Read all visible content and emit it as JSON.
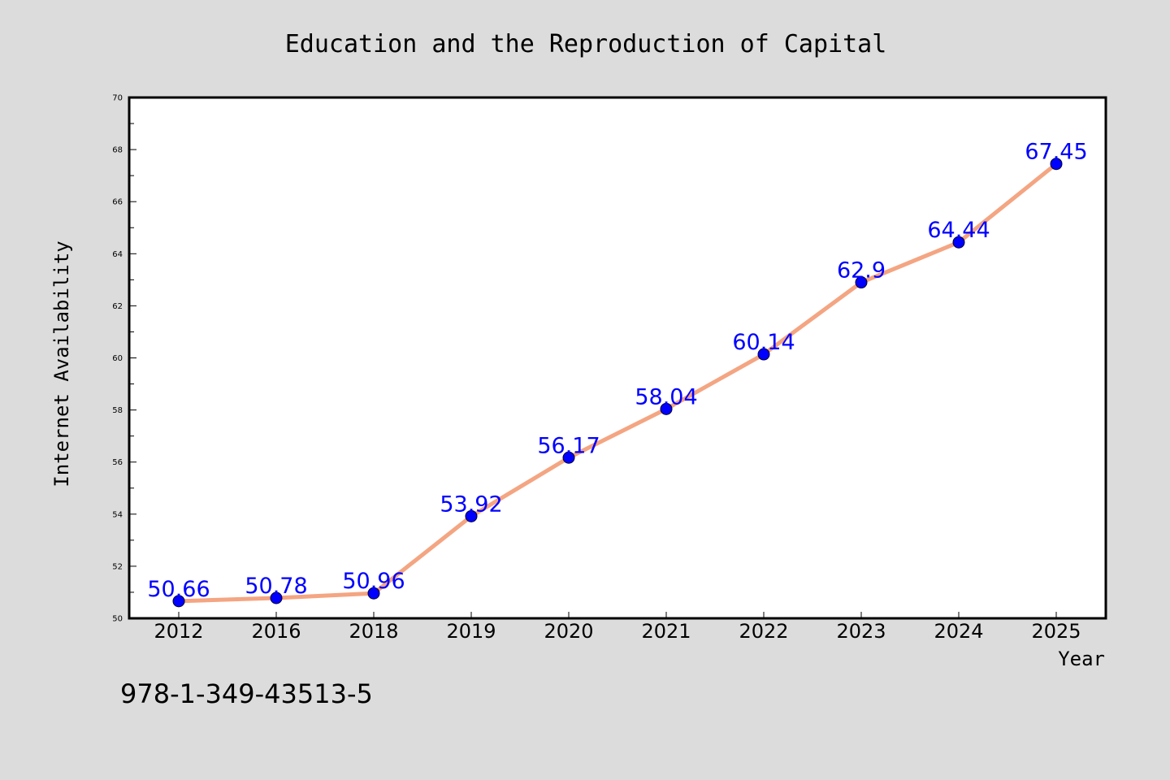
{
  "chart_data": {
    "type": "line",
    "title": "Education and the Reproduction of Capital",
    "xlabel": "Year",
    "ylabel": "Internet Availability",
    "categories": [
      "2012",
      "2016",
      "2018",
      "2019",
      "2020",
      "2021",
      "2022",
      "2023",
      "2024",
      "2025"
    ],
    "series": [
      {
        "values": [
          50.66,
          50.78,
          50.96,
          53.92,
          56.17,
          58.04,
          60.14,
          62.9,
          64.44,
          67.45
        ],
        "data_labels": [
          "50.66",
          "50.78",
          "50.96",
          "53.92",
          "56.17",
          "58.04",
          "60.14",
          "62.9",
          "64.44",
          "67.45"
        ]
      }
    ],
    "ylim": [
      50,
      70
    ],
    "yticks": [
      "50",
      "52",
      "54",
      "56",
      "58",
      "60",
      "62",
      "64",
      "66",
      "68",
      "70"
    ],
    "grid": false,
    "legend": "none",
    "colors": {
      "line": "#f4a582",
      "marker": "#0000ff",
      "label": "#0000ff",
      "background": "#dcdcdc",
      "plot_area": "#ffffff"
    }
  },
  "footer": {
    "isbn": "978-1-349-43513-5"
  }
}
